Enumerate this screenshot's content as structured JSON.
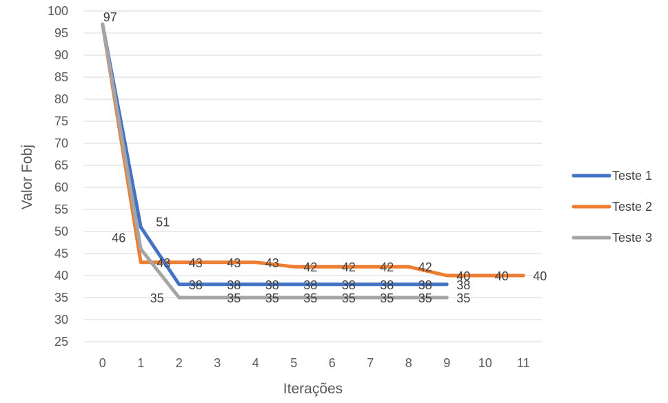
{
  "chart_data": {
    "type": "line",
    "title": "",
    "xlabel": "Iterações",
    "ylabel": "Valor Fobj",
    "x": [
      0,
      1,
      2,
      3,
      4,
      5,
      6,
      7,
      8,
      9,
      10,
      11
    ],
    "ylim": [
      25,
      100
    ],
    "yticks": [
      25,
      30,
      35,
      40,
      45,
      50,
      55,
      60,
      65,
      70,
      75,
      80,
      85,
      90,
      95,
      100
    ],
    "grid": "horizontal",
    "legend_position": "right",
    "series": [
      {
        "name": "Teste 1",
        "color": "#4472C4",
        "x": [
          0,
          1,
          2,
          3,
          4,
          5,
          6,
          7,
          8,
          9
        ],
        "values": [
          97,
          51,
          38,
          38,
          38,
          38,
          38,
          38,
          38,
          38
        ]
      },
      {
        "name": "Teste 2",
        "color": "#ED7D31",
        "x": [
          0,
          1,
          2,
          3,
          4,
          5,
          6,
          7,
          8,
          9,
          10,
          11
        ],
        "values": [
          97,
          43,
          43,
          43,
          43,
          42,
          42,
          42,
          42,
          40,
          40,
          40
        ]
      },
      {
        "name": "Teste 3",
        "color": "#A5A5A5",
        "x": [
          0,
          1,
          2,
          3,
          4,
          5,
          6,
          7,
          8,
          9
        ],
        "values": [
          97,
          46,
          35,
          35,
          35,
          35,
          35,
          35,
          35,
          35
        ]
      }
    ]
  }
}
